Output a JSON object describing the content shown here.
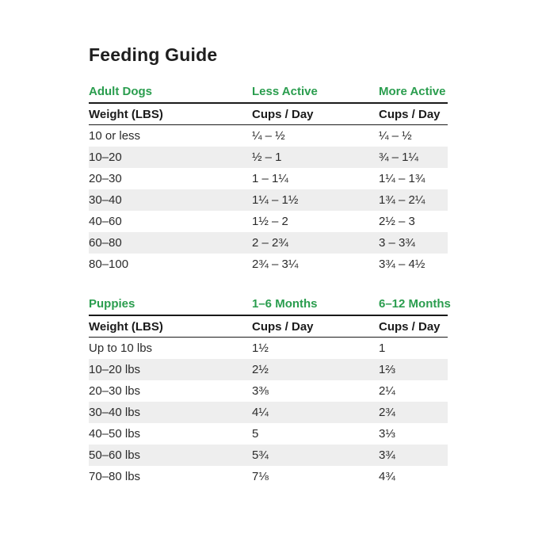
{
  "page": {
    "title": "Feeding Guide"
  },
  "colors": {
    "accent_green": "#2a9d4e",
    "stripe_gray": "#eeeeee",
    "text_dark": "#1b1b1b",
    "background": "#ffffff"
  },
  "tables": [
    {
      "section": "adult-dogs",
      "headers": [
        "Adult Dogs",
        "Less Active",
        "More Active"
      ],
      "subheaders": [
        "Weight (LBS)",
        "Cups / Day",
        "Cups / Day"
      ],
      "rows": [
        [
          "10 or less",
          "¼ – ½",
          "¼ – ½"
        ],
        [
          "10–20",
          "½ – 1",
          "¾ – 1¼"
        ],
        [
          "20–30",
          "1 – 1¼",
          "1¼ – 1¾"
        ],
        [
          "30–40",
          "1¼ – 1½",
          "1¾ – 2¼"
        ],
        [
          "40–60",
          "1½ – 2",
          "2½ – 3"
        ],
        [
          "60–80",
          "2 – 2¾",
          "3 – 3¾"
        ],
        [
          "80–100",
          "2¾ – 3¼",
          "3¾ – 4½"
        ]
      ]
    },
    {
      "section": "puppies",
      "headers": [
        "Puppies",
        "1–6 Months",
        "6–12 Months"
      ],
      "subheaders": [
        "Weight (LBS)",
        "Cups / Day",
        "Cups / Day"
      ],
      "rows": [
        [
          "Up to 10 lbs",
          "1½",
          "1"
        ],
        [
          "10–20 lbs",
          "2½",
          "1⅔"
        ],
        [
          "20–30 lbs",
          "3⅜",
          "2¼"
        ],
        [
          "30–40 lbs",
          "4¼",
          "2¾"
        ],
        [
          "40–50 lbs",
          "5",
          "3⅓"
        ],
        [
          "50–60 lbs",
          "5¾",
          "3¾"
        ],
        [
          "70–80 lbs",
          "7⅛",
          "4¾"
        ]
      ]
    }
  ]
}
